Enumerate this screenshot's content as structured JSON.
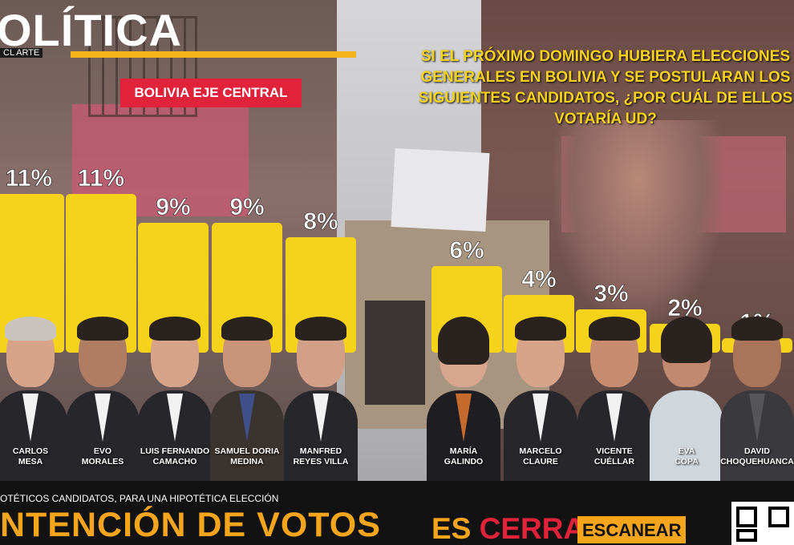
{
  "header": {
    "logo": "OLÍTICA",
    "logo_sub": "CL ARTE",
    "region": "BOLIVIA EJE CENTRAL",
    "question": "SI EL PRÓXIMO DOMINGO HUBIERA ELECCIONES GENERALES EN BOLIVIA Y SE POSTULARAN LOS SIGUIENTES CANDIDATOS, ¿POR CUÁL DE ELLOS VOTARÍA UD?"
  },
  "chart_data": {
    "type": "bar",
    "categories": [
      "CARLOS MESA",
      "EVO MORALES",
      "LUIS FERNANDO CAMACHO",
      "SAMUEL DORIA MEDINA",
      "MANFRED REYES VILLA",
      "MARÍA GALINDO",
      "MARCELO CLAURE",
      "VICENTE CUÉLLAR",
      "EVA COPA",
      "DAVID CHOQUEHUANCA"
    ],
    "values": [
      11,
      11,
      9,
      9,
      8,
      6,
      4,
      3,
      2,
      1
    ],
    "labels": [
      "11%",
      "11%",
      "9%",
      "9%",
      "8%",
      "6%",
      "4%",
      "3%",
      "2%",
      "1%"
    ],
    "unit": "%",
    "bar_color": "#f5d31b",
    "title": "",
    "xlabel": "",
    "ylabel": "",
    "grid": false
  },
  "candidates": [
    {
      "line1": "CARLOS",
      "line2": "MESA"
    },
    {
      "line1": "EVO",
      "line2": "MORALES"
    },
    {
      "line1": "LUIS FERNANDO",
      "line2": "CAMACHO"
    },
    {
      "line1": "SAMUEL DORIA",
      "line2": "MEDINA"
    },
    {
      "line1": "MANFRED",
      "line2": "REYES VILLA"
    },
    {
      "line1": "MARÍA",
      "line2": "GALINDO"
    },
    {
      "line1": "MARCELO",
      "line2": "CLAURE"
    },
    {
      "line1": "VICENTE",
      "line2": "CUÉLLAR"
    },
    {
      "line1": "EVA",
      "line2": "COPA"
    },
    {
      "line1": "DAVID",
      "line2": "CHOQUEHUANCA"
    }
  ],
  "footer": {
    "note": "OTÉTICOS CANDIDATOS, PARA UNA HIPOTÉTICA ELECCIÓN",
    "title": "NTENCIÓN DE VOTOS",
    "promo_es": "ES ",
    "promo_cerr": "CERRA",
    "scan": "ESCANEAR"
  },
  "colors": {
    "accent": "#f5b51b",
    "highlight_red": "#e0223a",
    "question_yellow": "#f5d31b"
  }
}
